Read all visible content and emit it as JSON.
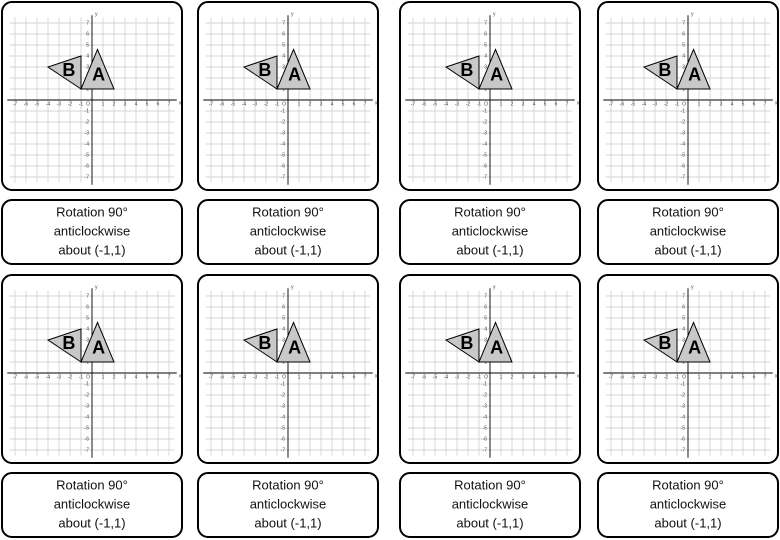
{
  "grid": {
    "x_label": "x",
    "y_label": "y",
    "origin_label": "O",
    "ticks": [
      -7,
      -6,
      -5,
      -4,
      -3,
      -2,
      -1,
      1,
      2,
      3,
      4,
      5,
      6,
      7
    ]
  },
  "cards": [
    {
      "shape_labels": [
        "B",
        "A"
      ],
      "caption": [
        "Rotation 90°",
        "anticlockwise",
        "about (-1,1)"
      ]
    },
    {
      "shape_labels": [
        "B",
        "A"
      ],
      "caption": [
        "Rotation 90°",
        "anticlockwise",
        "about (-1,1)"
      ]
    },
    {
      "shape_labels": [
        "B",
        "A"
      ],
      "caption": [
        "Rotation 90°",
        "anticlockwise",
        "about (-1,1)"
      ]
    },
    {
      "shape_labels": [
        "B",
        "A"
      ],
      "caption": [
        "Rotation 90°",
        "anticlockwise",
        "about (-1,1)"
      ]
    },
    {
      "shape_labels": [
        "B",
        "A"
      ],
      "caption": [
        "Rotation 90°",
        "anticlockwise",
        "about (-1,1)"
      ]
    },
    {
      "shape_labels": [
        "B",
        "A"
      ],
      "caption": [
        "Rotation 90°",
        "anticlockwise",
        "about (-1,1)"
      ]
    },
    {
      "shape_labels": [
        "B",
        "A"
      ],
      "caption": [
        "Rotation 90°",
        "anticlockwise",
        "about (-1,1)"
      ]
    },
    {
      "shape_labels": [
        "B",
        "A"
      ],
      "caption": [
        "Rotation 90°",
        "anticlockwise",
        "about (-1,1)"
      ]
    }
  ]
}
